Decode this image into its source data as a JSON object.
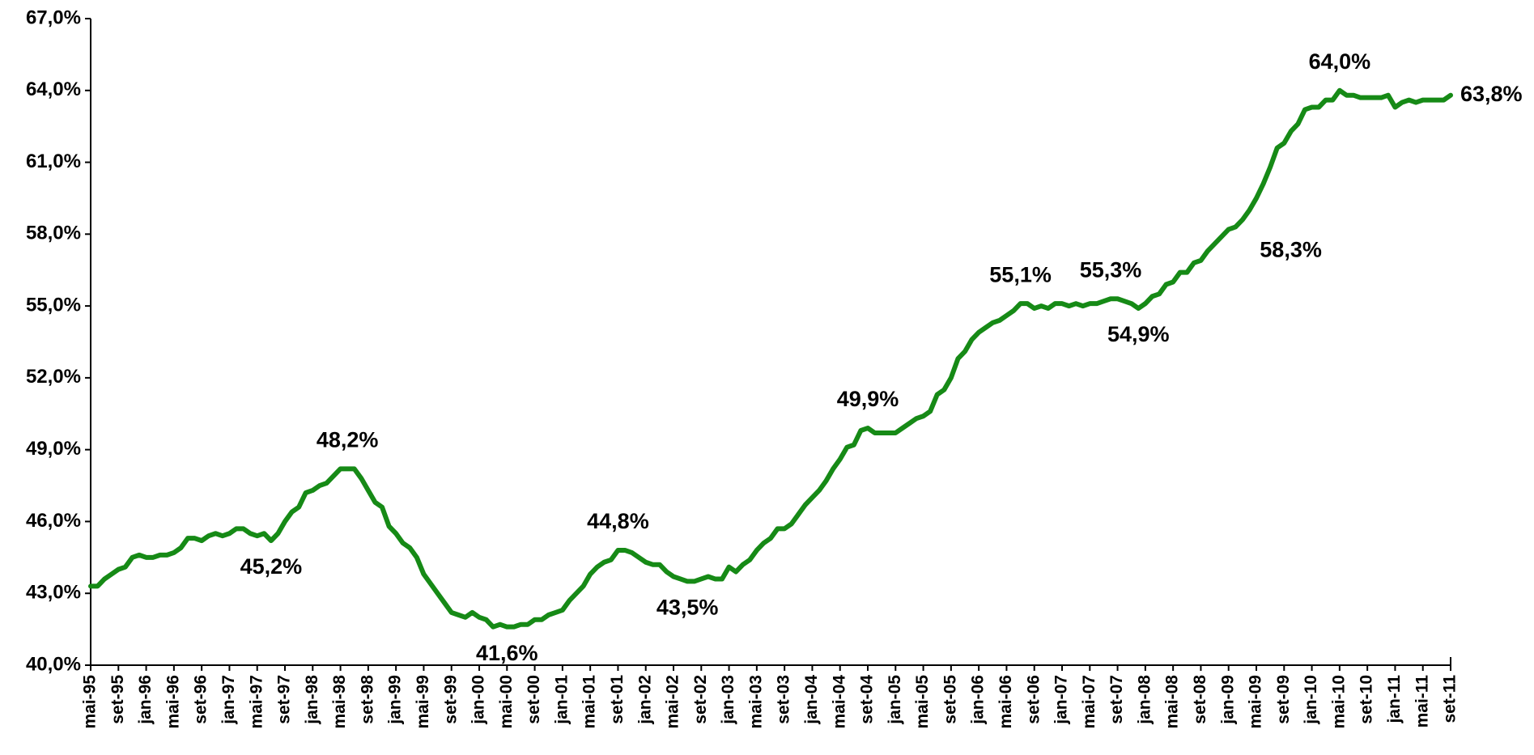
{
  "chart_data": {
    "type": "line",
    "categories": [
      "mai-95",
      null,
      null,
      null,
      "set-95",
      null,
      null,
      null,
      "jan-96",
      null,
      null,
      null,
      "mai-96",
      null,
      null,
      null,
      "set-96",
      null,
      null,
      null,
      "jan-97",
      null,
      null,
      null,
      "mai-97",
      null,
      null,
      null,
      "set-97",
      null,
      null,
      null,
      "jan-98",
      null,
      null,
      null,
      "mai-98",
      null,
      null,
      null,
      "set-98",
      null,
      null,
      null,
      "jan-99",
      null,
      null,
      null,
      "mai-99",
      null,
      null,
      null,
      "set-99",
      null,
      null,
      null,
      "jan-00",
      null,
      null,
      null,
      "mai-00",
      null,
      null,
      null,
      "set-00",
      null,
      null,
      null,
      "jan-01",
      null,
      null,
      null,
      "mai-01",
      null,
      null,
      null,
      "set-01",
      null,
      null,
      null,
      "jan-02",
      null,
      null,
      null,
      "mai-02",
      null,
      null,
      null,
      "set-02",
      null,
      null,
      null,
      "jan-03",
      null,
      null,
      null,
      "mai-03",
      null,
      null,
      null,
      "set-03",
      null,
      null,
      null,
      "jan-04",
      null,
      null,
      null,
      "mai-04",
      null,
      null,
      null,
      "set-04",
      null,
      null,
      null,
      "jan-05",
      null,
      null,
      null,
      "mai-05",
      null,
      null,
      null,
      "set-05",
      null,
      null,
      null,
      "jan-06",
      null,
      null,
      null,
      "mai-06",
      null,
      null,
      null,
      "set-06",
      null,
      null,
      null,
      "jan-07",
      null,
      null,
      null,
      "mai-07",
      null,
      null,
      null,
      "set-07",
      null,
      null,
      null,
      "jan-08",
      null,
      null,
      null,
      "mai-08",
      null,
      null,
      null,
      "set-08",
      null,
      null,
      null,
      "jan-09",
      null,
      null,
      null,
      "mai-09",
      null,
      null,
      null,
      "set-09",
      null,
      null,
      null,
      "jan-10",
      null,
      null,
      null,
      "mai-10",
      null,
      null,
      null,
      "set-10",
      null,
      null,
      null,
      "jan-11",
      null,
      null,
      null,
      "mai-11",
      null,
      null,
      null,
      "set-11"
    ],
    "values": [
      43.3,
      43.3,
      43.6,
      43.8,
      44.0,
      44.1,
      44.5,
      44.6,
      44.5,
      44.5,
      44.6,
      44.6,
      44.7,
      44.9,
      45.3,
      45.3,
      45.2,
      45.4,
      45.5,
      45.4,
      45.5,
      45.7,
      45.7,
      45.5,
      45.4,
      45.5,
      45.2,
      45.5,
      46.0,
      46.4,
      46.6,
      47.2,
      47.3,
      47.5,
      47.6,
      47.9,
      48.2,
      48.2,
      48.2,
      47.8,
      47.3,
      46.8,
      46.6,
      45.8,
      45.5,
      45.1,
      44.9,
      44.5,
      43.8,
      43.4,
      43.0,
      42.6,
      42.2,
      42.1,
      42.0,
      42.2,
      42.0,
      41.9,
      41.6,
      41.7,
      41.6,
      41.6,
      41.7,
      41.7,
      41.9,
      41.9,
      42.1,
      42.2,
      42.3,
      42.7,
      43.0,
      43.3,
      43.8,
      44.1,
      44.3,
      44.4,
      44.8,
      44.8,
      44.7,
      44.5,
      44.3,
      44.2,
      44.2,
      43.9,
      43.7,
      43.6,
      43.5,
      43.5,
      43.6,
      43.7,
      43.6,
      43.6,
      44.1,
      43.9,
      44.2,
      44.4,
      44.8,
      45.1,
      45.3,
      45.7,
      45.7,
      45.9,
      46.3,
      46.7,
      47.0,
      47.3,
      47.7,
      48.2,
      48.6,
      49.1,
      49.2,
      49.8,
      49.9,
      49.7,
      49.7,
      49.7,
      49.7,
      49.9,
      50.1,
      50.3,
      50.4,
      50.6,
      51.3,
      51.5,
      52.0,
      52.8,
      53.1,
      53.6,
      53.9,
      54.1,
      54.3,
      54.4,
      54.6,
      54.8,
      55.1,
      55.1,
      54.9,
      55.0,
      54.9,
      55.1,
      55.1,
      55.0,
      55.1,
      55.0,
      55.1,
      55.1,
      55.2,
      55.3,
      55.3,
      55.2,
      55.1,
      54.9,
      55.1,
      55.4,
      55.5,
      55.9,
      56.0,
      56.4,
      56.4,
      56.8,
      56.9,
      57.3,
      57.6,
      57.9,
      58.2,
      58.3,
      58.6,
      59.0,
      59.5,
      60.1,
      60.8,
      61.6,
      61.8,
      62.3,
      62.6,
      63.2,
      63.3,
      63.3,
      63.6,
      63.6,
      64.0,
      63.8,
      63.8,
      63.7,
      63.7,
      63.7,
      63.7,
      63.8,
      63.3,
      63.5,
      63.6,
      63.5,
      63.6,
      63.6,
      63.6,
      63.6,
      63.8
    ],
    "value_labels": [
      null,
      null,
      null,
      null,
      null,
      null,
      null,
      null,
      null,
      null,
      null,
      null,
      null,
      null,
      null,
      null,
      null,
      null,
      null,
      null,
      null,
      null,
      null,
      null,
      null,
      null,
      "45,2%",
      null,
      null,
      null,
      null,
      null,
      null,
      null,
      null,
      null,
      null,
      "48,2%",
      null,
      null,
      null,
      null,
      null,
      null,
      null,
      null,
      null,
      null,
      null,
      null,
      null,
      null,
      null,
      null,
      null,
      null,
      null,
      null,
      null,
      null,
      "41,6%",
      null,
      null,
      null,
      null,
      null,
      null,
      null,
      null,
      null,
      null,
      null,
      null,
      null,
      null,
      null,
      "44,8%",
      null,
      null,
      null,
      null,
      null,
      null,
      null,
      null,
      null,
      "43,5%",
      null,
      null,
      null,
      null,
      null,
      null,
      null,
      null,
      null,
      null,
      null,
      null,
      null,
      null,
      null,
      null,
      null,
      null,
      null,
      null,
      null,
      null,
      null,
      null,
      null,
      "49,9%",
      null,
      null,
      null,
      null,
      null,
      null,
      null,
      null,
      null,
      null,
      null,
      null,
      null,
      null,
      null,
      null,
      null,
      null,
      null,
      null,
      null,
      "55,1%",
      null,
      null,
      null,
      null,
      null,
      null,
      null,
      null,
      null,
      null,
      null,
      null,
      "55,3%",
      null,
      null,
      null,
      "54,9%",
      null,
      null,
      null,
      null,
      null,
      null,
      null,
      null,
      null,
      null,
      null,
      null,
      null,
      "58,3%",
      null,
      null,
      null,
      null,
      null,
      null,
      null,
      null,
      null,
      null,
      null,
      null,
      null,
      null,
      "64,0%",
      null,
      null,
      null,
      null,
      null,
      null,
      null,
      null,
      null,
      null,
      null,
      null,
      null,
      null,
      null,
      "63,8%"
    ],
    "color": "#168a16",
    "ylim": [
      40,
      67
    ],
    "yticks": [
      {
        "value": 40,
        "label": "40,0%"
      },
      {
        "value": 43,
        "label": "43,0%"
      },
      {
        "value": 46,
        "label": "46,0%"
      },
      {
        "value": 49,
        "label": "49,0%"
      },
      {
        "value": 52,
        "label": "52,0%"
      },
      {
        "value": 55,
        "label": "55,0%"
      },
      {
        "value": 58,
        "label": "58,0%"
      },
      {
        "value": 61,
        "label": "61,0%"
      },
      {
        "value": 64,
        "label": "64,0%"
      },
      {
        "value": 67,
        "label": "67,0%"
      }
    ],
    "grid": false
  }
}
